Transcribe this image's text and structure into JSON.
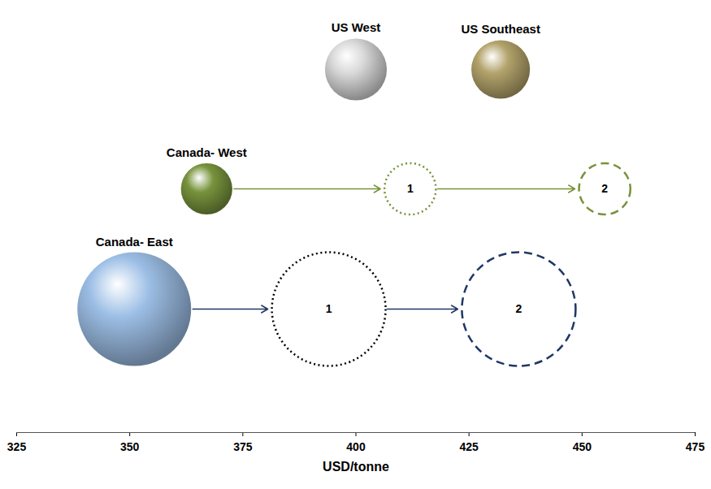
{
  "chart_data": {
    "type": "bubble",
    "x_label": "USD/tonne",
    "xlim": [
      325,
      475
    ],
    "xticks": [
      325,
      350,
      375,
      400,
      425,
      450,
      475
    ],
    "tick_labels": "x",
    "series": [
      {
        "name": "US West",
        "color": "#d9d9d9",
        "x": 400,
        "size": 1.45
      },
      {
        "name": "US Southeast",
        "color": "#b3a36b",
        "x": 432,
        "size": 1.3
      },
      {
        "name": "Canada- West",
        "color": "#77933c",
        "x": 367,
        "size": 1.0,
        "arrow_color": "#77933c",
        "projections": [
          {
            "label": "1",
            "x": 412,
            "size": 1.0,
            "color": "#77933c",
            "line_style": "dotted"
          },
          {
            "label": "2",
            "x": 455,
            "size": 1.0,
            "color": "#77933c",
            "line_style": "dashed"
          }
        ]
      },
      {
        "name": "Canada- East",
        "color": "#9dbfe6",
        "x": 351,
        "size": 4.9,
        "arrow_color": "#1f3864",
        "projections": [
          {
            "label": "1",
            "x": 394,
            "size": 4.9,
            "color": "#000000",
            "line_style": "dotted"
          },
          {
            "label": "2",
            "x": 436,
            "size": 4.9,
            "color": "#1f3864",
            "line_style": "dashed"
          }
        ]
      }
    ]
  }
}
